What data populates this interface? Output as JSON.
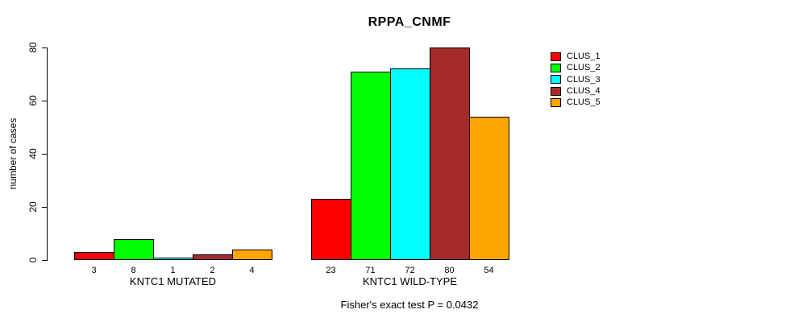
{
  "title": "RPPA_CNMF",
  "stat_note": "Fisher's exact test P = 0.0432",
  "y_axis": {
    "label": "number of cases",
    "ticks": [
      0,
      20,
      40,
      60,
      80
    ]
  },
  "legend": {
    "items": [
      {
        "label": "CLUS_1",
        "color": "#FF0000"
      },
      {
        "label": "CLUS_2",
        "color": "#00FF00"
      },
      {
        "label": "CLUS_3",
        "color": "#00FFFF"
      },
      {
        "label": "CLUS_4",
        "color": "#A52A2A"
      },
      {
        "label": "CLUS_5",
        "color": "#FFA500"
      }
    ]
  },
  "chart_data": {
    "type": "bar",
    "title": "RPPA_CNMF",
    "ylabel": "number of cases",
    "xlabel": "",
    "ylim": [
      0,
      80
    ],
    "grid": false,
    "legend_position": "right",
    "bar_value_labels": true,
    "annotation": "Fisher's exact test P = 0.0432",
    "categories": [
      "KNTC1 MUTATED",
      "KNTC1 WILD-TYPE"
    ],
    "series": [
      {
        "name": "CLUS_1",
        "color": "#FF0000",
        "values": [
          3,
          23
        ]
      },
      {
        "name": "CLUS_2",
        "color": "#00FF00",
        "values": [
          8,
          71
        ]
      },
      {
        "name": "CLUS_3",
        "color": "#00FFFF",
        "values": [
          1,
          72
        ]
      },
      {
        "name": "CLUS_4",
        "color": "#A52A2A",
        "values": [
          2,
          80
        ]
      },
      {
        "name": "CLUS_5",
        "color": "#FFA500",
        "values": [
          4,
          54
        ]
      }
    ]
  }
}
